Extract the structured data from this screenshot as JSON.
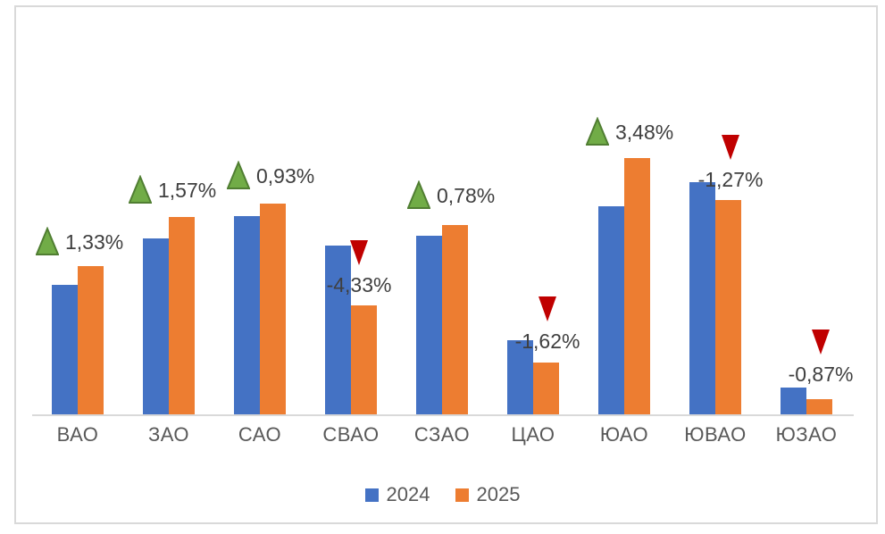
{
  "chart_data": {
    "type": "bar",
    "title": "",
    "xlabel": "",
    "ylabel": "",
    "categories": [
      "ВАО",
      "ЗАО",
      "САО",
      "СВАО",
      "СЗАО",
      "ЦАО",
      "ЮАО",
      "ЮВАО",
      "ЮЗАО"
    ],
    "series": [
      {
        "name": "2024",
        "color": "#4472C4",
        "values": [
          50.5,
          68.6,
          77.4,
          65.9,
          69.7,
          28.9,
          81.2,
          90.6,
          10.5
        ]
      },
      {
        "name": "2025",
        "color": "#ED7D31",
        "values": [
          57.8,
          77.0,
          82.2,
          42.5,
          73.9,
          20.2,
          100.0,
          83.6,
          5.9
        ]
      }
    ],
    "value_axis": {
      "visible": false,
      "ylim": [
        0,
        100
      ]
    },
    "grid": "off",
    "annotations": [
      {
        "category": "ВАО",
        "direction": "up",
        "label": "1,33%"
      },
      {
        "category": "ЗАО",
        "direction": "up",
        "label": "1,57%"
      },
      {
        "category": "САО",
        "direction": "up",
        "label": "0,93%"
      },
      {
        "category": "СВАО",
        "direction": "down",
        "label": "-4,33%"
      },
      {
        "category": "СЗАО",
        "direction": "up",
        "label": "0,78%"
      },
      {
        "category": "ЦАО",
        "direction": "down",
        "label": "-1,62%"
      },
      {
        "category": "ЮАО",
        "direction": "up",
        "label": "3,48%"
      },
      {
        "category": "ЮВАО",
        "direction": "down",
        "label": "-1,27%"
      },
      {
        "category": "ЮЗАО",
        "direction": "down",
        "label": "-0,87%"
      }
    ],
    "legend": {
      "position": "bottom",
      "entries": [
        {
          "label": "2024",
          "color": "#4472C4"
        },
        {
          "label": "2025",
          "color": "#ED7D31"
        }
      ]
    }
  },
  "colors": {
    "up_triangle": "#71AC47",
    "up_triangle_border": "#507E32",
    "down_triangle": "#C00000",
    "axis_line": "#D9D9D9",
    "frame_border": "#D9D9D9",
    "category_text": "#595959",
    "annotation_text": "#3F3F3F"
  }
}
